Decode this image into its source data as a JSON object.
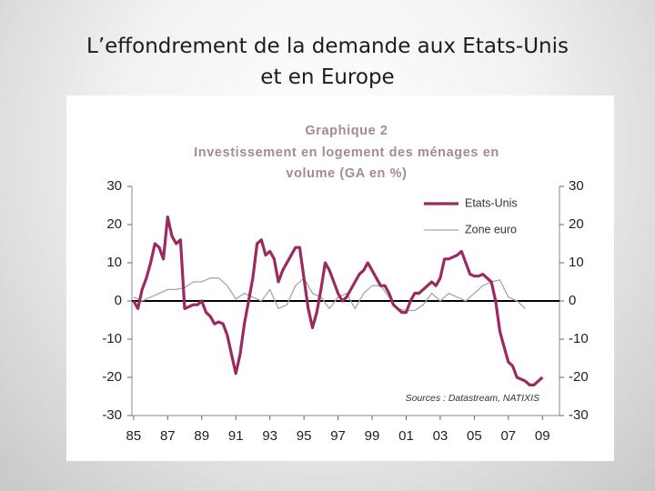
{
  "slide_title_lines": [
    "L’effondrement de la demande aux Etats-Unis",
    "et en Europe"
  ],
  "chart_data": {
    "type": "line",
    "title": "Graphique 2",
    "subtitle_lines": [
      "Investissement en logement des ménages en",
      "volume (GA en %)"
    ],
    "annotation": "Sources : Datastream, NATIXIS",
    "xlim": [
      1984.9,
      2010
    ],
    "xticks": [
      {
        "value": 1985,
        "label": "85"
      },
      {
        "value": 1987,
        "label": "87"
      },
      {
        "value": 1989,
        "label": "89"
      },
      {
        "value": 1991,
        "label": "91"
      },
      {
        "value": 1993,
        "label": "93"
      },
      {
        "value": 1995,
        "label": "95"
      },
      {
        "value": 1997,
        "label": "97"
      },
      {
        "value": 1999,
        "label": "99"
      },
      {
        "value": 2001,
        "label": "01"
      },
      {
        "value": 2003,
        "label": "03"
      },
      {
        "value": 2005,
        "label": "05"
      },
      {
        "value": 2007,
        "label": "07"
      },
      {
        "value": 2009,
        "label": "09"
      }
    ],
    "ylim": [
      -30,
      30
    ],
    "yticks": [
      -30,
      -20,
      -10,
      0,
      10,
      20,
      30
    ],
    "y2lim": [
      -30,
      30
    ],
    "y2ticks": [
      -30,
      -20,
      -10,
      0,
      10,
      20,
      30
    ],
    "hline": 0,
    "legend": "top-right",
    "series": [
      {
        "name": "Etats-Unis",
        "color": "#9b2a5f",
        "width": 3.2,
        "x": [
          1985,
          1985.25,
          1985.5,
          1985.75,
          1986,
          1986.25,
          1986.5,
          1986.75,
          1987,
          1987.25,
          1987.5,
          1987.75,
          1988,
          1988.25,
          1988.5,
          1988.75,
          1989,
          1989.25,
          1989.5,
          1989.75,
          1990,
          1990.25,
          1990.5,
          1990.75,
          1991,
          1991.25,
          1991.5,
          1991.75,
          1992,
          1992.25,
          1992.5,
          1992.75,
          1993,
          1993.25,
          1993.5,
          1993.75,
          1994,
          1994.25,
          1994.5,
          1994.75,
          1995,
          1995.25,
          1995.5,
          1995.75,
          1996,
          1996.25,
          1996.5,
          1996.75,
          1997,
          1997.25,
          1997.5,
          1997.75,
          1998,
          1998.25,
          1998.5,
          1998.75,
          1999,
          1999.25,
          1999.5,
          1999.75,
          2000,
          2000.25,
          2000.5,
          2000.75,
          2001,
          2001.25,
          2001.5,
          2001.75,
          2002,
          2002.25,
          2002.5,
          2002.75,
          2003,
          2003.25,
          2003.5,
          2003.75,
          2004,
          2004.25,
          2004.5,
          2004.75,
          2005,
          2005.25,
          2005.5,
          2005.75,
          2006,
          2006.25,
          2006.5,
          2006.75,
          2007,
          2007.25,
          2007.5,
          2007.75,
          2008,
          2008.25,
          2008.5,
          2008.75,
          2009
        ],
        "values": [
          0,
          -2,
          3,
          6,
          10,
          15,
          14,
          11,
          22,
          17,
          15,
          16,
          -2,
          -1.5,
          -1,
          -1,
          0,
          -3,
          -4,
          -6,
          -5.5,
          -6,
          -9,
          -14,
          -19,
          -14,
          -6,
          0,
          6,
          15,
          16,
          12,
          13,
          11,
          5,
          8,
          10,
          12,
          14,
          14,
          6,
          -2,
          -7,
          -3,
          3,
          10,
          8,
          5,
          2,
          0,
          1,
          3,
          5,
          7,
          8,
          10,
          8,
          6,
          4,
          4,
          2,
          -1,
          -2,
          -3,
          -3,
          0,
          2,
          2,
          3,
          4,
          5,
          4,
          6,
          11,
          11,
          11.5,
          12,
          13,
          10,
          7,
          6.5,
          6.5,
          7,
          6,
          5,
          0,
          -8,
          -12,
          -16,
          -17,
          -20,
          -20.5,
          -21,
          -22,
          -22,
          -21,
          -20
        ]
      },
      {
        "name": "Zone euro",
        "color": "#a6a6a6",
        "width": 1.3,
        "x": [
          1985,
          1985.5,
          1986,
          1986.5,
          1987,
          1987.5,
          1988,
          1988.5,
          1989,
          1989.5,
          1990,
          1990.5,
          1991,
          1991.5,
          1992,
          1992.5,
          1993,
          1993.5,
          1994,
          1994.5,
          1995,
          1995.5,
          1996,
          1996.5,
          1997,
          1997.5,
          1998,
          1998.5,
          1999,
          1999.5,
          2000,
          2000.5,
          2001,
          2001.5,
          2002,
          2002.5,
          2003,
          2003.5,
          2004,
          2004.5,
          2005,
          2005.5,
          2006,
          2006.5,
          2007,
          2007.5,
          2008
        ],
        "values": [
          1,
          0,
          1,
          2,
          3,
          3,
          3.5,
          5,
          5,
          6,
          6,
          4,
          0.5,
          2,
          1,
          0,
          3,
          -2,
          -1,
          4,
          6,
          2,
          1,
          -2,
          1,
          2,
          -2,
          2,
          4,
          4,
          1,
          -2,
          -2.5,
          -2.5,
          -1,
          2,
          0,
          2,
          1,
          0,
          2,
          4,
          5,
          5.5,
          1,
          0,
          -2
        ]
      }
    ]
  }
}
